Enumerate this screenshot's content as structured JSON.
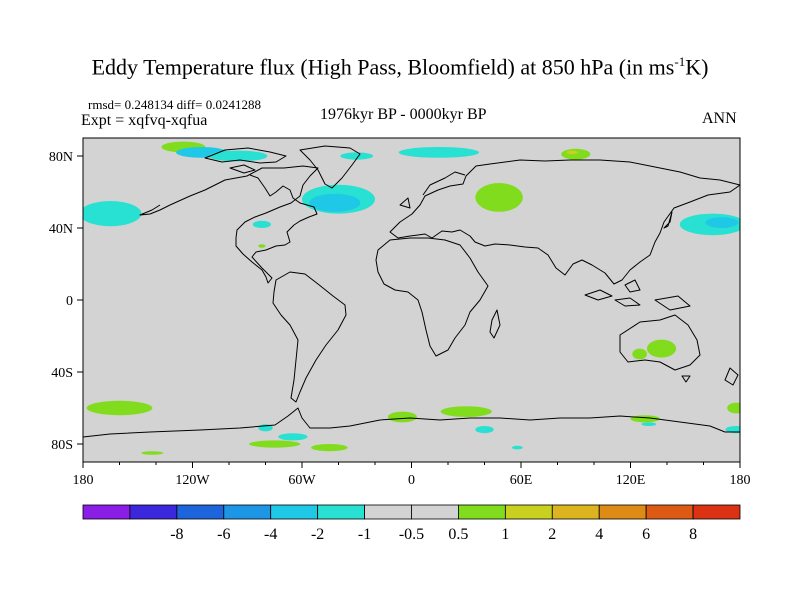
{
  "title": {
    "text": "Eddy Temperature flux (High Pass, Bloomfield) at 850 hPa (in ms",
    "superscript": "-1",
    "suffix": "K)"
  },
  "stats": "rmsd= 0.248134 diff= 0.0241288",
  "experiment": "Expt = xqfvq-xqfua",
  "period": "1976kyr BP - 0000kyr BP",
  "season": "ANN",
  "map": {
    "lat_labels": [
      {
        "lat": 80,
        "label": "80N"
      },
      {
        "lat": 40,
        "label": "40N"
      },
      {
        "lat": 0,
        "label": "0"
      },
      {
        "lat": -40,
        "label": "40S"
      },
      {
        "lat": -80,
        "label": "80S"
      }
    ],
    "lon_labels": [
      {
        "lon": -180,
        "label": "180"
      },
      {
        "lon": -120,
        "label": "120W"
      },
      {
        "lon": -60,
        "label": "60W"
      },
      {
        "lon": 0,
        "label": "0"
      },
      {
        "lon": 60,
        "label": "60E"
      },
      {
        "lon": 120,
        "label": "120E"
      },
      {
        "lon": 180,
        "label": "180"
      }
    ],
    "background_color": "#d3d3d3",
    "coast_color": "#000000"
  },
  "colorbar": {
    "colors": [
      "#8a1ee6",
      "#3c28dc",
      "#1e64dc",
      "#1e96e6",
      "#1ec8e6",
      "#28e1d2",
      "#d3d3d3",
      "#d3d3d3",
      "#82dc1e",
      "#c8d21e",
      "#dcb41e",
      "#dc8c14",
      "#dc5a14",
      "#dc3214"
    ],
    "labels": [
      "-8",
      "-6",
      "-4",
      "-2",
      "-1",
      "-0.5",
      "0.5",
      "1",
      "2",
      "4",
      "6",
      "8"
    ]
  },
  "anomalies": [
    {
      "sign": "pos",
      "level": 1,
      "lon": -125,
      "lat": 85,
      "rx": 12,
      "ry": 3
    },
    {
      "sign": "neg",
      "level": -1,
      "lon": -115,
      "lat": 82,
      "rx": 14,
      "ry": 3
    },
    {
      "sign": "neg",
      "level": -0.5,
      "lon": -95,
      "lat": 80,
      "rx": 16,
      "ry": 3
    },
    {
      "sign": "neg",
      "level": -0.5,
      "lon": -40,
      "lat": 56,
      "rx": 20,
      "ry": 8
    },
    {
      "sign": "neg",
      "level": -1,
      "lon": -42,
      "lat": 54,
      "rx": 14,
      "ry": 5
    },
    {
      "sign": "neg",
      "level": -0.5,
      "lon": -165,
      "lat": 48,
      "rx": 17,
      "ry": 7
    },
    {
      "sign": "neg",
      "level": -0.5,
      "lon": -82,
      "lat": 42,
      "rx": 5,
      "ry": 2
    },
    {
      "sign": "neg",
      "level": -0.5,
      "lon": -30,
      "lat": 80,
      "rx": 9,
      "ry": 2
    },
    {
      "sign": "neg",
      "level": -0.5,
      "lon": 165,
      "lat": 42,
      "rx": 18,
      "ry": 6
    },
    {
      "sign": "neg",
      "level": -1,
      "lon": 170,
      "lat": 43,
      "rx": 9,
      "ry": 3
    },
    {
      "sign": "neg",
      "level": -0.5,
      "lon": 15,
      "lat": 82,
      "rx": 22,
      "ry": 3
    },
    {
      "sign": "pos",
      "level": 1,
      "lon": 48,
      "lat": 57,
      "rx": 13,
      "ry": 8
    },
    {
      "sign": "pos",
      "level": 1,
      "lon": 90,
      "lat": 81,
      "rx": 8,
      "ry": 3
    },
    {
      "sign": "pos",
      "level": 2,
      "lon": 88,
      "lat": 82,
      "rx": 3,
      "ry": 1
    },
    {
      "sign": "pos",
      "level": 1,
      "lon": -82,
      "lat": 30,
      "rx": 2,
      "ry": 1
    },
    {
      "sign": "pos",
      "level": 1,
      "lon": 137,
      "lat": -27,
      "rx": 8,
      "ry": 5
    },
    {
      "sign": "pos",
      "level": 1,
      "lon": 125,
      "lat": -30,
      "rx": 4,
      "ry": 3
    },
    {
      "sign": "pos",
      "level": 1,
      "lon": -160,
      "lat": -60,
      "rx": 18,
      "ry": 4
    },
    {
      "sign": "pos",
      "level": 1,
      "lon": -5,
      "lat": -65,
      "rx": 8,
      "ry": 3
    },
    {
      "sign": "pos",
      "level": 1,
      "lon": 30,
      "lat": -62,
      "rx": 14,
      "ry": 3
    },
    {
      "sign": "neg",
      "level": -0.5,
      "lon": 40,
      "lat": -72,
      "rx": 5,
      "ry": 2
    },
    {
      "sign": "pos",
      "level": 1,
      "lon": 128,
      "lat": -66,
      "rx": 8,
      "ry": 2
    },
    {
      "sign": "neg",
      "level": -0.5,
      "lon": 130,
      "lat": -69,
      "rx": 4,
      "ry": 1
    },
    {
      "sign": "pos",
      "level": 1,
      "lon": 178,
      "lat": -60,
      "rx": 5,
      "ry": 3
    },
    {
      "sign": "neg",
      "level": -0.5,
      "lon": 178,
      "lat": -72,
      "rx": 6,
      "ry": 2
    },
    {
      "sign": "pos",
      "level": 1,
      "lon": -75,
      "lat": -80,
      "rx": 14,
      "ry": 2
    },
    {
      "sign": "pos",
      "level": 1,
      "lon": -45,
      "lat": -82,
      "rx": 10,
      "ry": 2
    },
    {
      "sign": "neg",
      "level": -0.5,
      "lon": -80,
      "lat": -71,
      "rx": 4,
      "ry": 2
    },
    {
      "sign": "neg",
      "level": -0.5,
      "lon": -65,
      "lat": -76,
      "rx": 8,
      "ry": 2
    },
    {
      "sign": "neg",
      "level": -0.5,
      "lon": 58,
      "lat": -82,
      "rx": 3,
      "ry": 1
    },
    {
      "sign": "pos",
      "level": 1,
      "lon": -142,
      "lat": -85,
      "rx": 6,
      "ry": 1
    }
  ]
}
